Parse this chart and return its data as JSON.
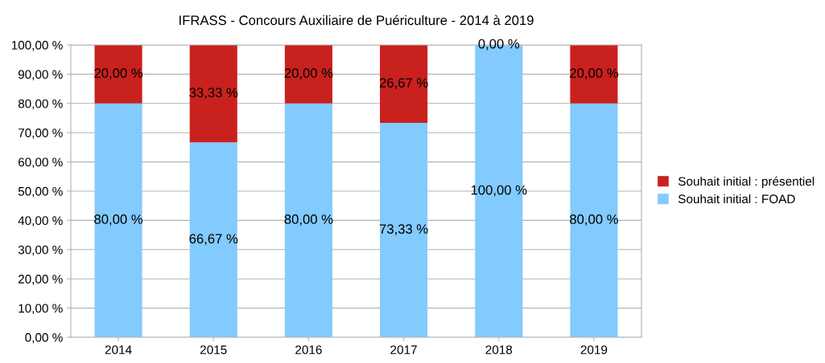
{
  "chart_data": {
    "type": "bar",
    "title": "IFRASS - Concours Auxiliaire de Puériculture - 2014 à 2019",
    "categories": [
      "2014",
      "2015",
      "2016",
      "2017",
      "2018",
      "2019"
    ],
    "stacked": true,
    "series": [
      {
        "name": "Souhait initial : FOAD",
        "color": "#83caff",
        "values": [
          80,
          66.67,
          80,
          73.33,
          100,
          80
        ],
        "value_labels": [
          "80,00 %",
          "66,67 %",
          "80,00 %",
          "73,33 %",
          "100,00 %",
          "80,00 %"
        ]
      },
      {
        "name": "Souhait initial : présentiel",
        "color": "#c9211e",
        "values": [
          20,
          33.33,
          20,
          26.67,
          0,
          20
        ],
        "value_labels": [
          "20,00 %",
          "33,33 %",
          "20,00 %",
          "26,67 %",
          "0,00 %",
          "20,00 %"
        ]
      }
    ],
    "ylim": [
      0,
      100
    ],
    "yticks": [
      {
        "value": 0,
        "label": "0,00 %"
      },
      {
        "value": 10,
        "label": "10,00 %"
      },
      {
        "value": 20,
        "label": "20,00 %"
      },
      {
        "value": 30,
        "label": "30,00 %"
      },
      {
        "value": 40,
        "label": "40,00 %"
      },
      {
        "value": 50,
        "label": "50,00 %"
      },
      {
        "value": 60,
        "label": "60,00 %"
      },
      {
        "value": 70,
        "label": "70,00 %"
      },
      {
        "value": 80,
        "label": "80,00 %"
      },
      {
        "value": 90,
        "label": "90,00 %"
      },
      {
        "value": 100,
        "label": "100,00 %"
      }
    ],
    "grid": "y",
    "legend": "right"
  }
}
